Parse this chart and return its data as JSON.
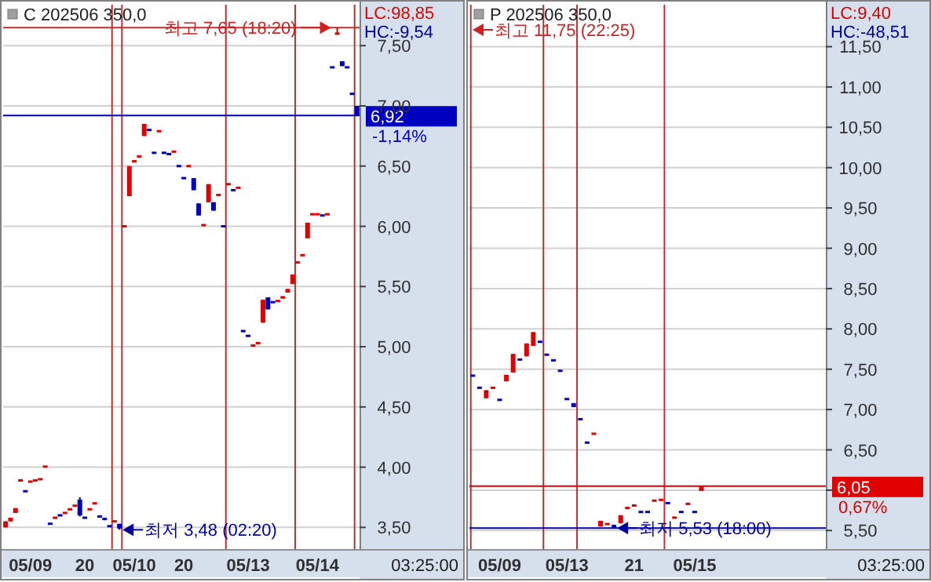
{
  "chart_data": [
    {
      "type": "candlestick",
      "title": "C 202506 350,0",
      "ylim": [
        3.32,
        7.84
      ],
      "categories": [
        null,
        null,
        null,
        null,
        null,
        "05/09",
        null,
        null,
        null,
        null,
        null,
        null,
        null,
        null,
        null,
        null,
        "20",
        null,
        null,
        null,
        null,
        null,
        null,
        null,
        null,
        null,
        "05/10",
        null,
        null,
        null,
        null,
        null,
        null,
        null,
        null,
        null,
        "20",
        null,
        null,
        null,
        null,
        null,
        null,
        null,
        null,
        null,
        null,
        null,
        null,
        "05/13",
        null,
        null,
        null,
        null,
        null,
        null,
        null,
        null,
        null,
        null,
        null,
        null,
        null,
        "05/14",
        null,
        null,
        null,
        null,
        null,
        null,
        null,
        null
      ],
      "yticks": [
        {
          "value": 3.5,
          "label": "3,50"
        },
        {
          "value": 4,
          "label": "4,00"
        },
        {
          "value": 4.5,
          "label": "4,50"
        },
        {
          "value": 5,
          "label": "5,00"
        },
        {
          "value": 5.5,
          "label": "5,50"
        },
        {
          "value": 6,
          "label": "6,00"
        },
        {
          "value": 6.5,
          "label": "6,50"
        },
        {
          "value": 7,
          "label": "7,00"
        },
        {
          "value": 7.5,
          "label": "7,50"
        }
      ],
      "grid": "y",
      "ohlc": [
        [
          3.5,
          3.55,
          3.5,
          3.55
        ],
        [
          3.55,
          3.58,
          3.55,
          3.58
        ],
        [
          3.62,
          3.66,
          3.62,
          3.66
        ],
        [
          3.88,
          3.9,
          3.88,
          3.9
        ],
        [
          3.8,
          3.8,
          3.8,
          3.8
        ],
        [
          3.88,
          3.88,
          3.88,
          3.88
        ],
        [
          3.89,
          3.89,
          3.89,
          3.89
        ],
        [
          3.9,
          3.9,
          3.9,
          3.9
        ],
        [
          4,
          4.01,
          4,
          4.01
        ],
        [
          3.53,
          3.53,
          3.53,
          3.53
        ],
        [
          3.58,
          3.58,
          3.58,
          3.58
        ],
        [
          3.6,
          3.6,
          3.6,
          3.6
        ],
        [
          3.62,
          3.62,
          3.62,
          3.62
        ],
        [
          3.65,
          3.65,
          3.65,
          3.65
        ],
        [
          3.68,
          3.68,
          3.68,
          3.68
        ],
        [
          3.73,
          3.75,
          3.59,
          3.6
        ],
        [
          3.58,
          3.58,
          3.58,
          3.58
        ],
        [
          3.65,
          3.65,
          3.65,
          3.65
        ],
        [
          3.7,
          3.7,
          3.7,
          3.7
        ],
        [
          3.59,
          3.59,
          3.59,
          3.59
        ],
        [
          3.58,
          3.58,
          3.56,
          3.56
        ],
        [
          3.51,
          3.51,
          3.51,
          3.51
        ],
        [
          3.55,
          3.55,
          3.55,
          3.55
        ],
        [
          3.53,
          3.53,
          3.48,
          3.49
        ],
        [
          6,
          6,
          6,
          6
        ],
        [
          6.25,
          6.5,
          6.25,
          6.5
        ],
        [
          6.54,
          6.54,
          6.54,
          6.54
        ],
        [
          6.58,
          6.58,
          6.58,
          6.58
        ],
        [
          6.75,
          6.85,
          6.75,
          6.85
        ],
        [
          6.8,
          6.8,
          6.8,
          6.8
        ],
        [
          6.61,
          6.61,
          6.61,
          6.61
        ],
        [
          6.79,
          6.79,
          6.79,
          6.79
        ],
        [
          6.61,
          6.61,
          6.61,
          6.61
        ],
        [
          6.6,
          6.6,
          6.6,
          6.6
        ],
        [
          6.62,
          6.62,
          6.62,
          6.62
        ],
        [
          6.5,
          6.5,
          6.5,
          6.5
        ],
        [
          6.4,
          6.4,
          6.4,
          6.4
        ],
        [
          6.5,
          6.5,
          6.5,
          6.5
        ],
        [
          6.4,
          6.4,
          6.3,
          6.3
        ],
        [
          6.19,
          6.19,
          6.09,
          6.09
        ],
        [
          6.01,
          6.01,
          6.01,
          6.01
        ],
        [
          6.2,
          6.35,
          6.2,
          6.35
        ],
        [
          6.2,
          6.2,
          6.13,
          6.13
        ],
        [
          6.26,
          6.26,
          6.26,
          6.26
        ],
        [
          6,
          6,
          6,
          6
        ],
        [
          6.35,
          6.35,
          6.35,
          6.35
        ],
        [
          6.3,
          6.3,
          6.3,
          6.3
        ],
        [
          6.32,
          6.32,
          6.32,
          6.32
        ],
        [
          5.13,
          5.13,
          5.13,
          5.13
        ],
        [
          5.09,
          5.09,
          5.09,
          5.09
        ],
        [
          5.01,
          5.01,
          5.01,
          5.01
        ],
        [
          5.03,
          5.03,
          5.03,
          5.03
        ],
        [
          5.2,
          5.39,
          5.2,
          5.39
        ],
        [
          5.41,
          5.41,
          5.31,
          5.31
        ],
        [
          5.37,
          5.37,
          5.37,
          5.37
        ],
        [
          5.38,
          5.38,
          5.38,
          5.38
        ],
        [
          5.4,
          5.42,
          5.4,
          5.42
        ],
        [
          5.45,
          5.48,
          5.45,
          5.48
        ],
        [
          5.52,
          5.6,
          5.52,
          5.6
        ],
        [
          5.7,
          5.7,
          5.7,
          5.7
        ],
        [
          5.76,
          5.76,
          5.76,
          5.76
        ],
        [
          5.9,
          6.03,
          5.9,
          6.03
        ],
        [
          6.1,
          6.1,
          6.1,
          6.1
        ],
        [
          6.1,
          6.1,
          6.1,
          6.1
        ],
        [
          6.09,
          6.09,
          6.09,
          6.09
        ],
        [
          6.1,
          6.1,
          6.1,
          6.1
        ],
        [
          7.32,
          7.32,
          7.32,
          7.32
        ],
        [
          7.6,
          7.65,
          7.6,
          7.6
        ],
        [
          7.37,
          7.37,
          7.33,
          7.33
        ],
        [
          7.32,
          7.32,
          7.32,
          7.32
        ],
        [
          7.1,
          7.1,
          7.1,
          7.1
        ],
        [
          7,
          7,
          6.92,
          6.92
        ]
      ],
      "colors": [
        "#e00000",
        "#e00000",
        "#e00000",
        "#e00000",
        "#0000c0",
        "#e00000",
        "#e00000",
        "#e00000",
        "#e00000",
        "#0000c0",
        "#e00000",
        "#0000c0",
        "#e00000",
        "#e00000",
        "#e00000",
        "#0000c0",
        "#0000c0",
        "#e00000",
        "#e00000",
        "#0000c0",
        "#0000c0",
        "#0000c0",
        "#e00000",
        "#0000c0",
        "#e00000",
        "#e00000",
        "#e00000",
        "#e00000",
        "#e00000",
        "#0000c0",
        "#0000c0",
        "#e00000",
        "#0000c0",
        "#0000c0",
        "#e00000",
        "#0000c0",
        "#0000c0",
        "#e00000",
        "#0000c0",
        "#0000c0",
        "#e00000",
        "#e00000",
        "#0000c0",
        "#e00000",
        "#0000c0",
        "#e00000",
        "#0000c0",
        "#e00000",
        "#0000c0",
        "#0000c0",
        "#e00000",
        "#e00000",
        "#e00000",
        "#0000c0",
        "#0000c0",
        "#e00000",
        "#e00000",
        "#e00000",
        "#e00000",
        "#e00000",
        "#e00000",
        "#e00000",
        "#e00000",
        "#e00000",
        "#0000c0",
        "#e00000",
        "#0000c0",
        "#e00000",
        "#0000c0",
        "#0000c0",
        "#0000c0",
        "#0000c0"
      ],
      "ref_lines": [
        {
          "axis": "y",
          "value": 7.65,
          "color": "#c03030"
        },
        {
          "axis": "y",
          "value": 6.92,
          "label": "6,92",
          "color": "#0000c0"
        }
      ],
      "annotations": [
        "LC:98,85",
        "HC:-9,54",
        "-1,14%",
        "03:25:00",
        "최저 3,48 (02:20)",
        {
          "text": "최고 7,65 (18:20)",
          "y": 7.65
        }
      ]
    },
    {
      "type": "candlestick",
      "title": "P 202506 350,0",
      "ylim": [
        5.27,
        12.02
      ],
      "categories": [
        null,
        null,
        null,
        null,
        "05/09",
        null,
        null,
        null,
        null,
        null,
        null,
        null,
        null,
        null,
        "05/13",
        null,
        null,
        null,
        null,
        null,
        null,
        null,
        null,
        null,
        "21",
        null,
        null,
        null,
        null,
        null,
        null,
        null,
        null,
        "05/15",
        null,
        null,
        null,
        null,
        null,
        null,
        null,
        null,
        null,
        null,
        null,
        null,
        null,
        null,
        null,
        null,
        null,
        null,
        null
      ],
      "yticks": [
        {
          "value": 5.5,
          "label": "5,50"
        },
        {
          "value": 6,
          "label": null
        },
        {
          "value": 6.5,
          "label": "6,50"
        },
        {
          "value": 7,
          "label": "7,00"
        },
        {
          "value": 7.5,
          "label": "7,50"
        },
        {
          "value": 8,
          "label": "8,00"
        },
        {
          "value": 8.5,
          "label": "8,50"
        },
        {
          "value": 9,
          "label": "9,00"
        },
        {
          "value": 9.5,
          "label": "9,50"
        },
        {
          "value": 10,
          "label": "10,00"
        },
        {
          "value": 10.5,
          "label": "10,50"
        },
        {
          "value": 11,
          "label": "11,00"
        },
        {
          "value": 11.5,
          "label": "11,50"
        }
      ],
      "grid": "y",
      "ohlc": [
        [
          7.42,
          7.42,
          7.42,
          7.42
        ],
        [
          7.27,
          7.27,
          7.27,
          7.27
        ],
        [
          7.14,
          7.24,
          7.14,
          7.24
        ],
        [
          7.27,
          7.27,
          7.27,
          7.27
        ],
        [
          7.12,
          7.12,
          7.12,
          7.12
        ],
        [
          7.35,
          7.43,
          7.35,
          7.43
        ],
        [
          7.46,
          7.69,
          7.46,
          7.69
        ],
        [
          7.62,
          7.62,
          7.62,
          7.62
        ],
        [
          7.66,
          7.82,
          7.66,
          7.82
        ],
        [
          7.79,
          7.96,
          7.79,
          7.96
        ],
        [
          7.84,
          7.84,
          7.84,
          7.84
        ],
        [
          7.68,
          7.68,
          7.68,
          7.68
        ],
        [
          7.61,
          7.61,
          7.61,
          7.61
        ],
        [
          7.48,
          7.48,
          7.48,
          7.48
        ],
        [
          7.13,
          7.13,
          7.13,
          7.13
        ],
        [
          7.08,
          7.08,
          7.03,
          7.03
        ],
        [
          6.88,
          6.88,
          6.88,
          6.88
        ],
        [
          6.59,
          6.59,
          6.59,
          6.59
        ],
        [
          6.7,
          6.7,
          6.7,
          6.7
        ],
        [
          5.55,
          5.62,
          5.55,
          5.62
        ],
        [
          5.58,
          5.58,
          5.58,
          5.58
        ],
        [
          5.57,
          5.57,
          5.53,
          5.53
        ],
        [
          5.59,
          5.69,
          5.59,
          5.69
        ],
        [
          5.78,
          5.78,
          5.78,
          5.78
        ],
        [
          5.81,
          5.81,
          5.81,
          5.81
        ],
        [
          5.73,
          5.73,
          5.73,
          5.73
        ],
        [
          5.73,
          5.73,
          5.73,
          5.73
        ],
        [
          5.87,
          5.87,
          5.87,
          5.87
        ],
        [
          5.88,
          5.88,
          5.88,
          5.88
        ],
        [
          5.84,
          5.84,
          5.84,
          5.84
        ],
        [
          5.66,
          5.66,
          5.66,
          5.66
        ],
        [
          5.73,
          5.73,
          5.73,
          5.73
        ],
        [
          5.83,
          5.83,
          5.83,
          5.83
        ],
        [
          5.73,
          5.73,
          5.73,
          5.73
        ],
        [
          5.99,
          6.05,
          5.99,
          6.05
        ],
        null,
        null,
        null,
        null,
        null,
        null,
        null,
        null,
        null,
        null,
        null,
        null,
        null,
        null,
        null,
        null,
        null,
        null
      ],
      "colors": [
        "#0000c0",
        "#0000c0",
        "#e00000",
        "#e00000",
        "#0000c0",
        "#e00000",
        "#e00000",
        "#0000c0",
        "#e00000",
        "#e00000",
        "#0000c0",
        "#0000c0",
        "#0000c0",
        "#0000c0",
        "#0000c0",
        "#0000c0",
        "#0000c0",
        "#0000c0",
        "#e00000",
        "#e00000",
        "#e00000",
        "#0000c0",
        "#e00000",
        "#e00000",
        "#e00000",
        "#0000c0",
        "#0000c0",
        "#e00000",
        "#e00000",
        "#0000c0",
        "#e00000",
        "#0000c0",
        "#e00000",
        "#0000c0",
        "#e00000",
        null,
        null,
        null,
        null,
        null,
        null,
        null,
        null,
        null,
        null,
        null,
        null,
        null,
        null,
        null,
        null,
        null,
        null
      ],
      "ref_lines": [
        {
          "axis": "y",
          "value": 5.53,
          "color": "#0000c0"
        },
        {
          "axis": "y",
          "value": 6.05,
          "label": "6,05",
          "color": "#e00000"
        }
      ],
      "annotations": [
        "LC:9,40",
        "HC:-48,51",
        "0,67%",
        "03:25:00",
        "최고 11,75 (22:25)",
        {
          "text": "최저 5,53 (18:00)",
          "y": 5.53
        }
      ]
    }
  ]
}
